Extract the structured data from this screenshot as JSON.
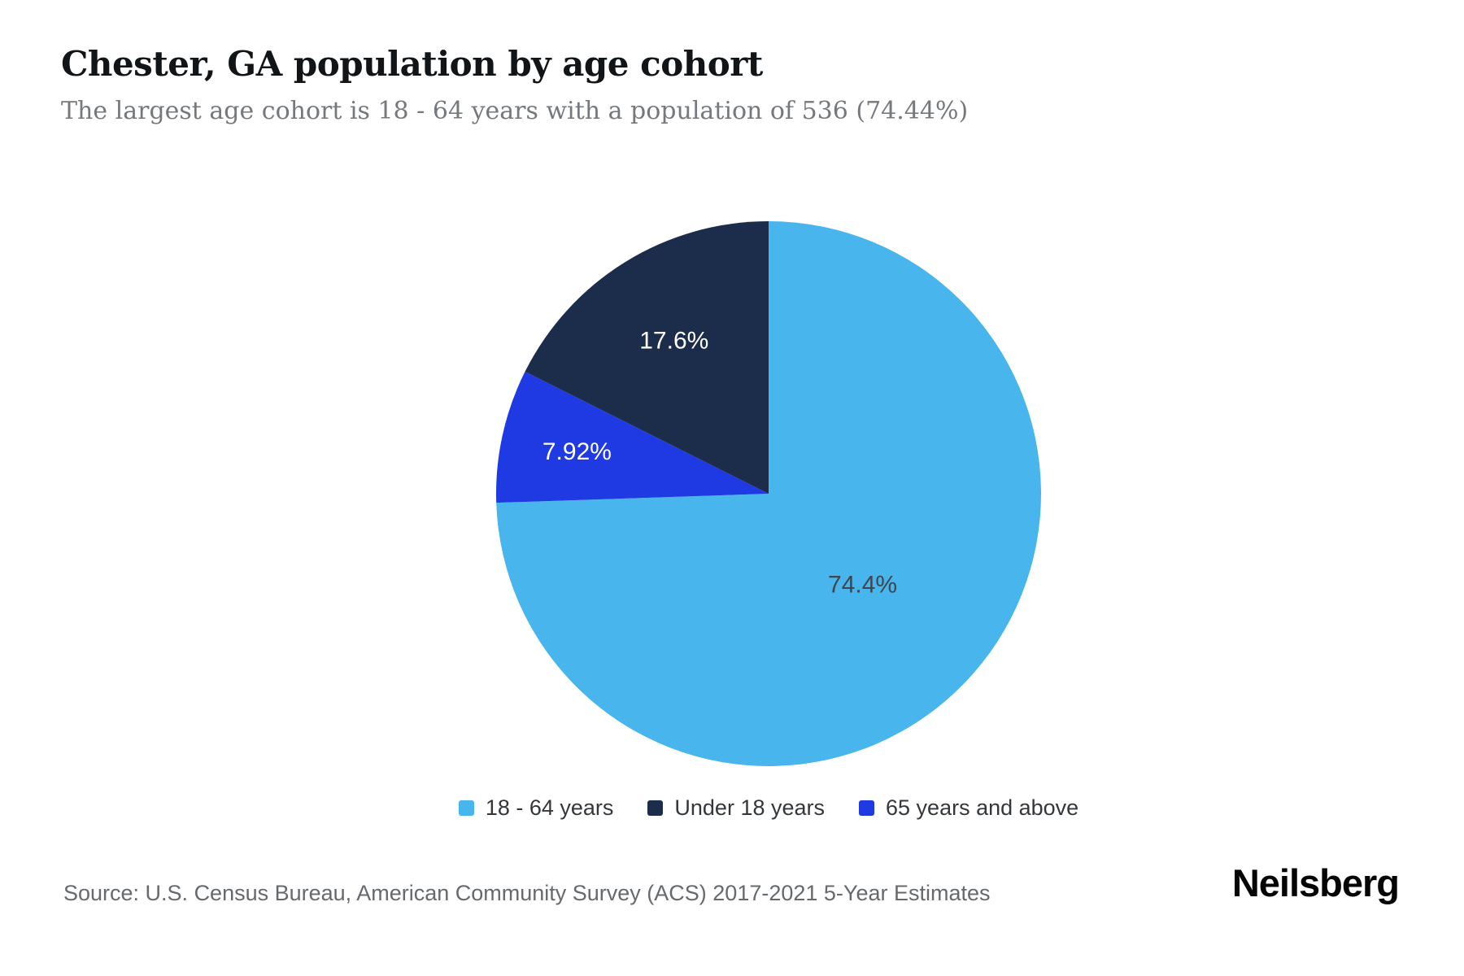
{
  "header": {
    "title": "Chester, GA population by age cohort",
    "subtitle": "The largest age cohort is 18 - 64 years with a population of 536 (74.44%)"
  },
  "chart_data": {
    "type": "pie",
    "title": "Chester, GA population by age cohort",
    "unit": "percent of total population",
    "start_angle_deg": 0,
    "direction": "clockwise",
    "legend_position": "bottom-center",
    "slices": [
      {
        "label": "18 - 64 years",
        "value": 74.44,
        "display": "74.4%",
        "color": "#48b5ed",
        "label_color": "#3e4750",
        "label_radius": 0.48
      },
      {
        "label": "65 years and above",
        "value": 7.92,
        "display": "7.92%",
        "color": "#1f3ae3",
        "label_color": "#ffffff",
        "label_radius": 0.72
      },
      {
        "label": "Under 18 years",
        "value": 17.6,
        "display": "17.6%",
        "color": "#1b2d4a",
        "label_color": "#ffffff",
        "label_radius": 0.66
      }
    ],
    "legend_order": [
      0,
      2,
      1
    ]
  },
  "footer": {
    "source": "Source: U.S. Census Bureau, American Community Survey (ACS) 2017-2021 5-Year Estimates",
    "brand": "Neilsberg"
  }
}
